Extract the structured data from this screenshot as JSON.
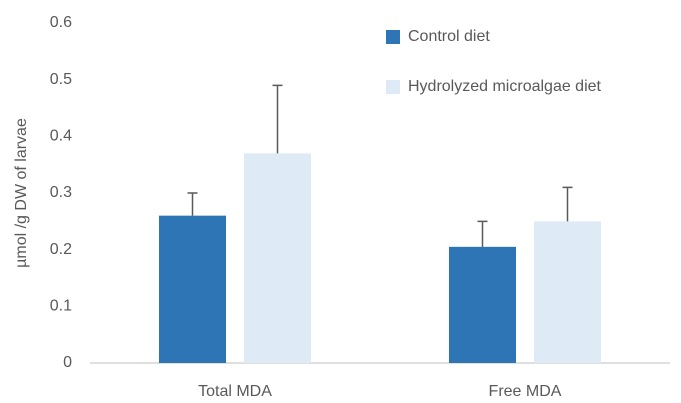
{
  "chart_data": {
    "type": "bar",
    "y_label": "µmol /g DW of larvae",
    "categories": [
      "Total MDA",
      "Free MDA"
    ],
    "series": [
      {
        "name": "Control diet",
        "color": "#2e75b6",
        "values": [
          0.26,
          0.205
        ],
        "errors": [
          0.04,
          0.045
        ]
      },
      {
        "name": "Hydrolyzed microalgae diet",
        "color": "#deebf7",
        "values": [
          0.37,
          0.25
        ],
        "errors": [
          0.12,
          0.06
        ]
      }
    ],
    "ylim": [
      0,
      0.6
    ],
    "yticks": [
      0,
      0.1,
      0.2,
      0.3,
      0.4,
      0.5,
      0.6
    ],
    "grid": false,
    "legend": "top-right"
  }
}
